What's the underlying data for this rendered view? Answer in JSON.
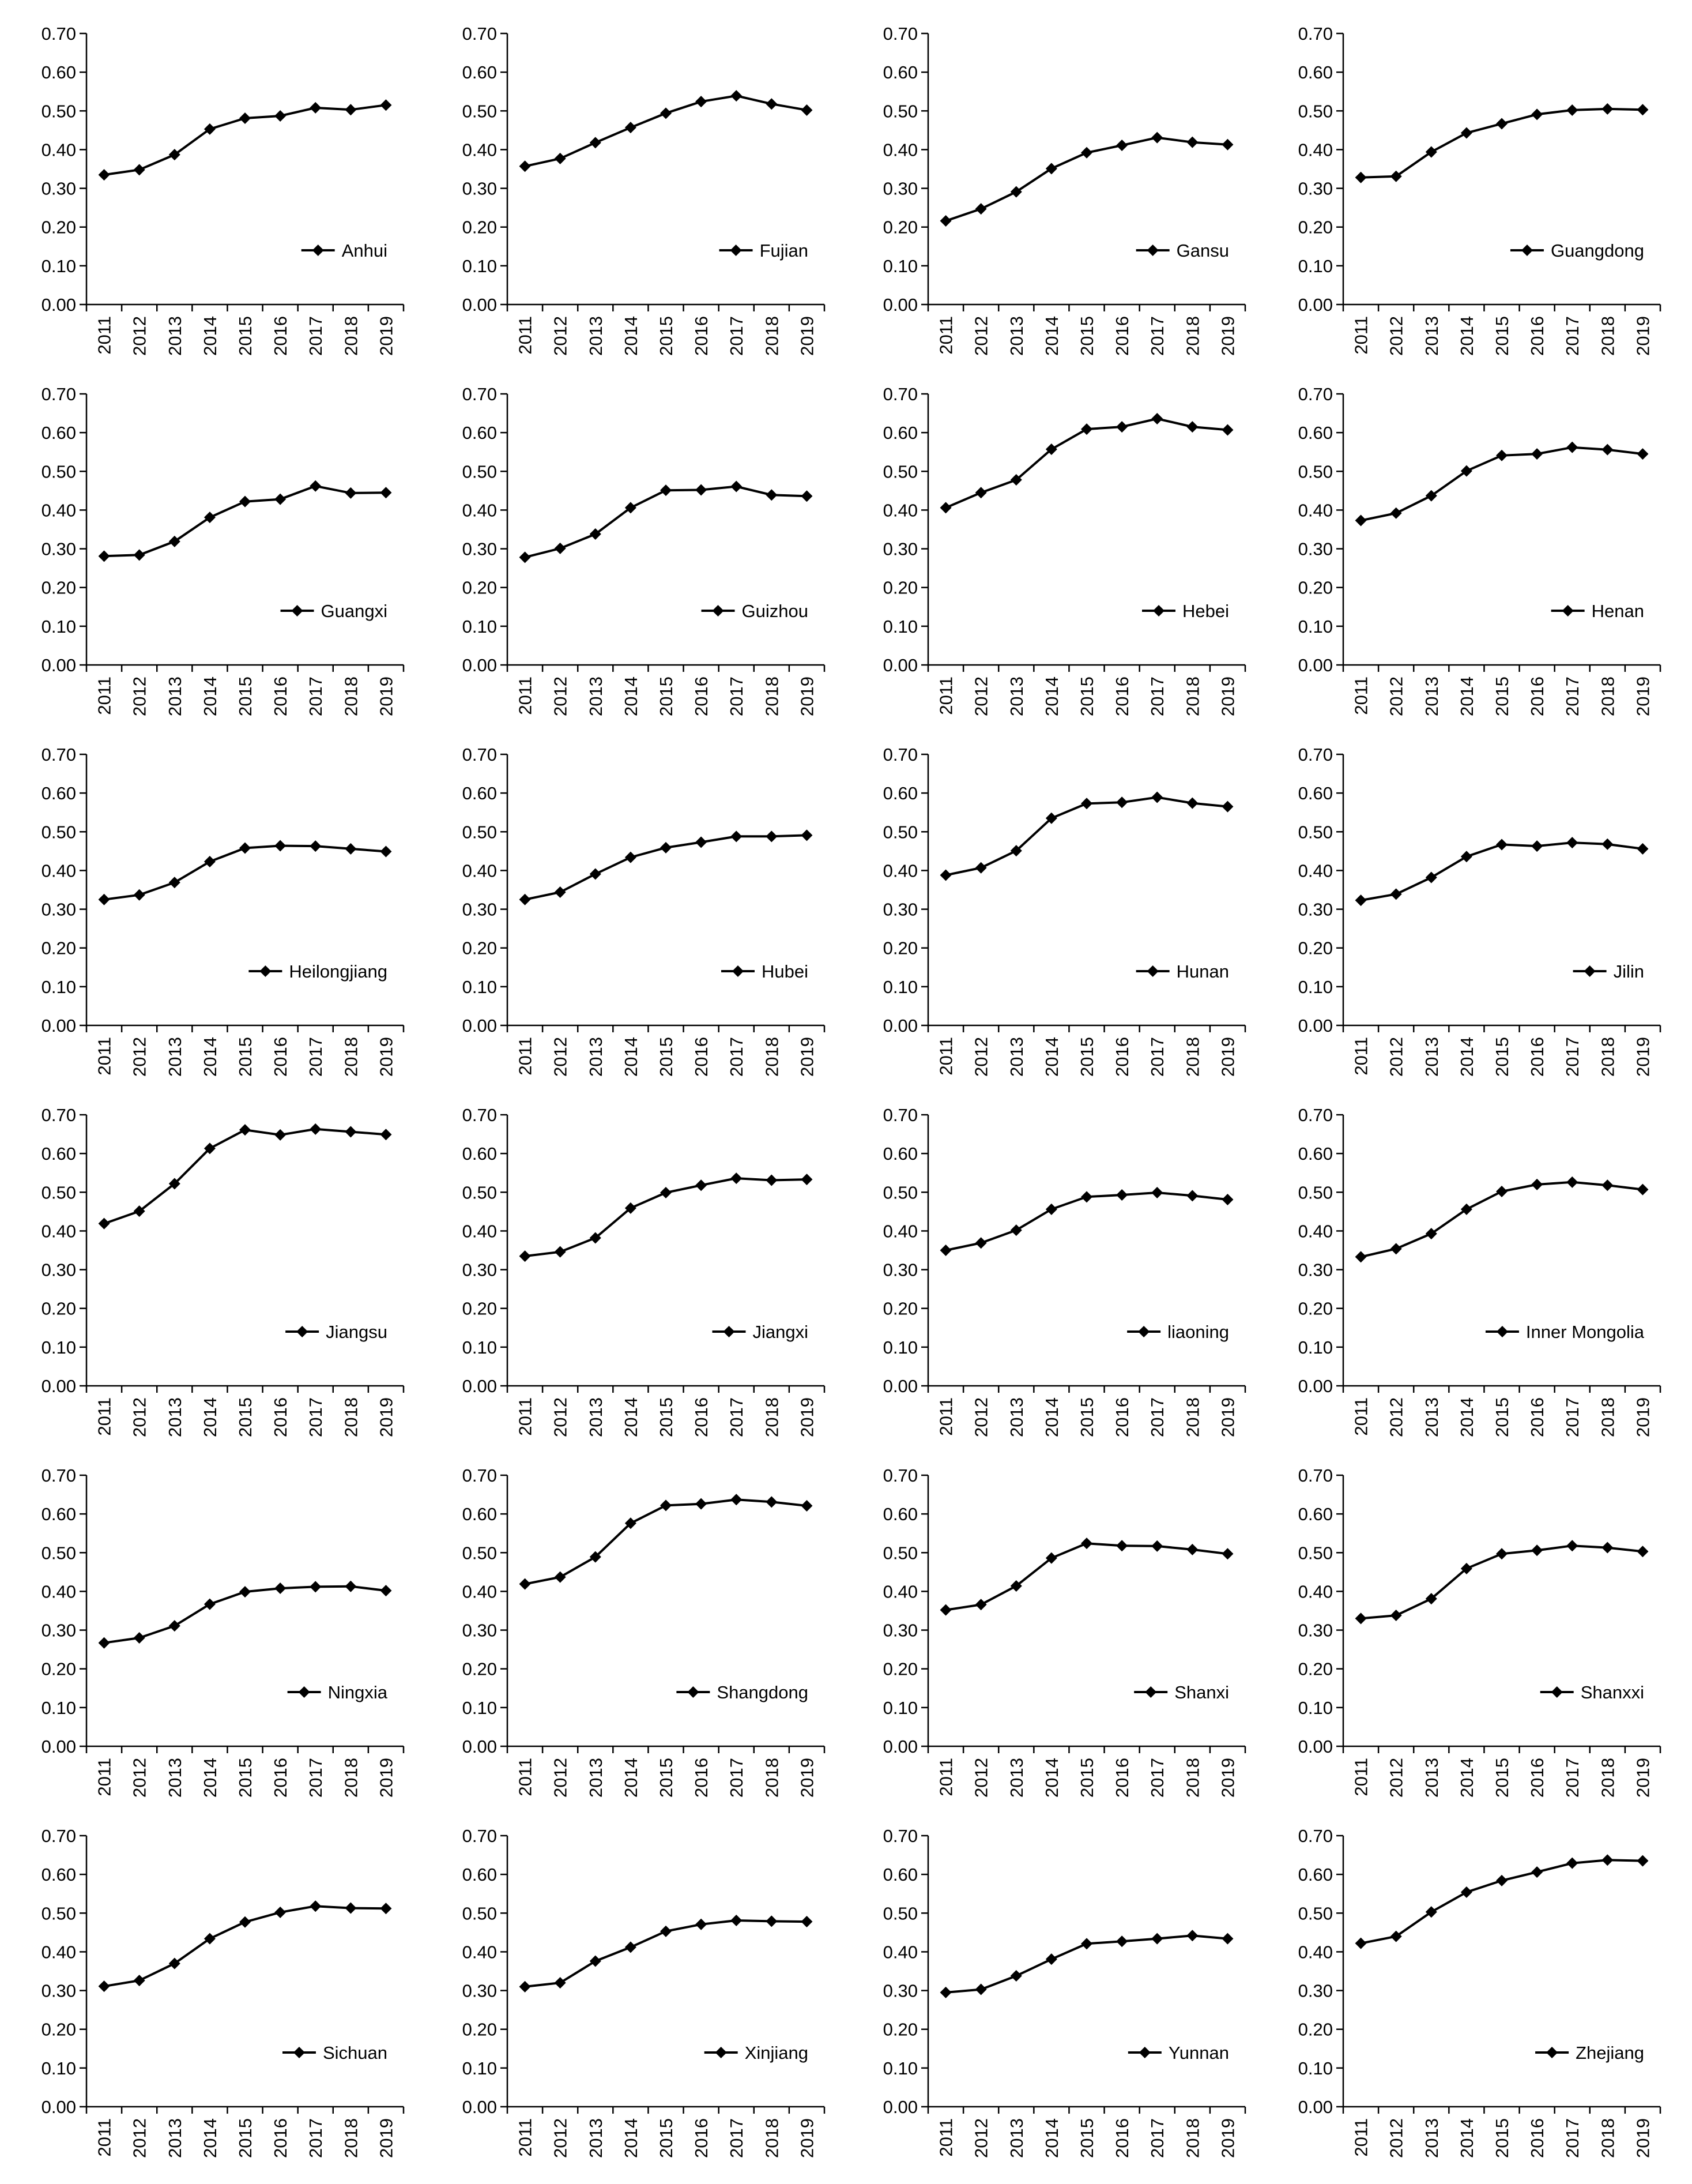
{
  "chart_data": [
    {
      "type": "line",
      "legend": "Anhui",
      "x": [
        "2011",
        "2012",
        "2013",
        "2014",
        "2015",
        "2016",
        "2017",
        "2018",
        "2019"
      ],
      "values": [
        0.335,
        0.348,
        0.387,
        0.453,
        0.481,
        0.487,
        0.508,
        0.503,
        0.515
      ],
      "ylim": [
        0,
        0.7
      ],
      "yticks": [
        "0.00",
        "0.10",
        "0.20",
        "0.30",
        "0.40",
        "0.50",
        "0.60",
        "0.70"
      ]
    },
    {
      "type": "line",
      "legend": "Fujian",
      "x": [
        "2011",
        "2012",
        "2013",
        "2014",
        "2015",
        "2016",
        "2017",
        "2018",
        "2019"
      ],
      "values": [
        0.357,
        0.377,
        0.418,
        0.457,
        0.494,
        0.524,
        0.539,
        0.518,
        0.502
      ],
      "ylim": [
        0,
        0.7
      ],
      "yticks": [
        "0.00",
        "0.10",
        "0.20",
        "0.30",
        "0.40",
        "0.50",
        "0.60",
        "0.70"
      ]
    },
    {
      "type": "line",
      "legend": "Gansu",
      "x": [
        "2011",
        "2012",
        "2013",
        "2014",
        "2015",
        "2016",
        "2017",
        "2018",
        "2019"
      ],
      "values": [
        0.216,
        0.247,
        0.291,
        0.351,
        0.392,
        0.411,
        0.431,
        0.419,
        0.413
      ],
      "ylim": [
        0,
        0.7
      ],
      "yticks": [
        "0.00",
        "0.10",
        "0.20",
        "0.30",
        "0.40",
        "0.50",
        "0.60",
        "0.70"
      ]
    },
    {
      "type": "line",
      "legend": "Guangdong",
      "x": [
        "2011",
        "2012",
        "2013",
        "2014",
        "2015",
        "2016",
        "2017",
        "2018",
        "2019"
      ],
      "values": [
        0.328,
        0.331,
        0.394,
        0.443,
        0.467,
        0.491,
        0.502,
        0.505,
        0.503
      ],
      "ylim": [
        0,
        0.7
      ],
      "yticks": [
        "0.00",
        "0.10",
        "0.20",
        "0.30",
        "0.40",
        "0.50",
        "0.60",
        "0.70"
      ]
    },
    {
      "type": "line",
      "legend": "Guangxi",
      "x": [
        "2011",
        "2012",
        "2013",
        "2014",
        "2015",
        "2016",
        "2017",
        "2018",
        "2019"
      ],
      "values": [
        0.281,
        0.284,
        0.319,
        0.381,
        0.422,
        0.428,
        0.462,
        0.444,
        0.445
      ],
      "ylim": [
        0,
        0.7
      ],
      "yticks": [
        "0.00",
        "0.10",
        "0.20",
        "0.30",
        "0.40",
        "0.50",
        "0.60",
        "0.70"
      ]
    },
    {
      "type": "line",
      "legend": "Guizhou",
      "x": [
        "2011",
        "2012",
        "2013",
        "2014",
        "2015",
        "2016",
        "2017",
        "2018",
        "2019"
      ],
      "values": [
        0.278,
        0.301,
        0.338,
        0.406,
        0.451,
        0.452,
        0.461,
        0.439,
        0.436
      ],
      "ylim": [
        0,
        0.7
      ],
      "yticks": [
        "0.00",
        "0.10",
        "0.20",
        "0.30",
        "0.40",
        "0.50",
        "0.60",
        "0.70"
      ]
    },
    {
      "type": "line",
      "legend": "Hebei",
      "x": [
        "2011",
        "2012",
        "2013",
        "2014",
        "2015",
        "2016",
        "2017",
        "2018",
        "2019"
      ],
      "values": [
        0.406,
        0.445,
        0.478,
        0.557,
        0.609,
        0.615,
        0.636,
        0.615,
        0.607
      ],
      "ylim": [
        0,
        0.7
      ],
      "yticks": [
        "0.00",
        "0.10",
        "0.20",
        "0.30",
        "0.40",
        "0.50",
        "0.60",
        "0.70"
      ]
    },
    {
      "type": "line",
      "legend": "Henan",
      "x": [
        "2011",
        "2012",
        "2013",
        "2014",
        "2015",
        "2016",
        "2017",
        "2018",
        "2019"
      ],
      "values": [
        0.373,
        0.392,
        0.437,
        0.501,
        0.541,
        0.545,
        0.562,
        0.556,
        0.545
      ],
      "ylim": [
        0,
        0.7
      ],
      "yticks": [
        "0.00",
        "0.10",
        "0.20",
        "0.30",
        "0.40",
        "0.50",
        "0.60",
        "0.70"
      ]
    },
    {
      "type": "line",
      "legend": "Heilongjiang",
      "x": [
        "2011",
        "2012",
        "2013",
        "2014",
        "2015",
        "2016",
        "2017",
        "2018",
        "2019"
      ],
      "values": [
        0.325,
        0.337,
        0.369,
        0.423,
        0.458,
        0.464,
        0.463,
        0.456,
        0.449
      ],
      "ylim": [
        0,
        0.7
      ],
      "yticks": [
        "0.00",
        "0.10",
        "0.20",
        "0.30",
        "0.40",
        "0.50",
        "0.60",
        "0.70"
      ]
    },
    {
      "type": "line",
      "legend": "Hubei",
      "x": [
        "2011",
        "2012",
        "2013",
        "2014",
        "2015",
        "2016",
        "2017",
        "2018",
        "2019"
      ],
      "values": [
        0.325,
        0.344,
        0.391,
        0.434,
        0.459,
        0.473,
        0.488,
        0.488,
        0.491
      ],
      "ylim": [
        0,
        0.7
      ],
      "yticks": [
        "0.00",
        "0.10",
        "0.20",
        "0.30",
        "0.40",
        "0.50",
        "0.60",
        "0.70"
      ]
    },
    {
      "type": "line",
      "legend": "Hunan",
      "x": [
        "2011",
        "2012",
        "2013",
        "2014",
        "2015",
        "2016",
        "2017",
        "2018",
        "2019"
      ],
      "values": [
        0.388,
        0.407,
        0.451,
        0.535,
        0.573,
        0.576,
        0.589,
        0.574,
        0.565
      ],
      "ylim": [
        0,
        0.7
      ],
      "yticks": [
        "0.00",
        "0.10",
        "0.20",
        "0.30",
        "0.40",
        "0.50",
        "0.60",
        "0.70"
      ]
    },
    {
      "type": "line",
      "legend": "Jilin",
      "x": [
        "2011",
        "2012",
        "2013",
        "2014",
        "2015",
        "2016",
        "2017",
        "2018",
        "2019"
      ],
      "values": [
        0.323,
        0.339,
        0.382,
        0.436,
        0.467,
        0.463,
        0.472,
        0.468,
        0.456
      ],
      "ylim": [
        0,
        0.7
      ],
      "yticks": [
        "0.00",
        "0.10",
        "0.20",
        "0.30",
        "0.40",
        "0.50",
        "0.60",
        "0.70"
      ]
    },
    {
      "type": "line",
      "legend": "Jiangsu",
      "x": [
        "2011",
        "2012",
        "2013",
        "2014",
        "2015",
        "2016",
        "2017",
        "2018",
        "2019"
      ],
      "values": [
        0.419,
        0.451,
        0.522,
        0.613,
        0.661,
        0.648,
        0.663,
        0.656,
        0.649
      ],
      "ylim": [
        0,
        0.7
      ],
      "yticks": [
        "0.00",
        "0.10",
        "0.20",
        "0.30",
        "0.40",
        "0.50",
        "0.60",
        "0.70"
      ]
    },
    {
      "type": "line",
      "legend": "Jiangxi",
      "x": [
        "2011",
        "2012",
        "2013",
        "2014",
        "2015",
        "2016",
        "2017",
        "2018",
        "2019"
      ],
      "values": [
        0.335,
        0.346,
        0.382,
        0.459,
        0.499,
        0.518,
        0.536,
        0.531,
        0.533
      ],
      "ylim": [
        0,
        0.7
      ],
      "yticks": [
        "0.00",
        "0.10",
        "0.20",
        "0.30",
        "0.40",
        "0.50",
        "0.60",
        "0.70"
      ]
    },
    {
      "type": "line",
      "legend": "liaoning",
      "x": [
        "2011",
        "2012",
        "2013",
        "2014",
        "2015",
        "2016",
        "2017",
        "2018",
        "2019"
      ],
      "values": [
        0.35,
        0.369,
        0.402,
        0.456,
        0.488,
        0.493,
        0.499,
        0.491,
        0.481
      ],
      "ylim": [
        0,
        0.7
      ],
      "yticks": [
        "0.00",
        "0.10",
        "0.20",
        "0.30",
        "0.40",
        "0.50",
        "0.60",
        "0.70"
      ]
    },
    {
      "type": "line",
      "legend": "Inner Mongolia",
      "x": [
        "2011",
        "2012",
        "2013",
        "2014",
        "2015",
        "2016",
        "2017",
        "2018",
        "2019"
      ],
      "values": [
        0.333,
        0.354,
        0.393,
        0.456,
        0.502,
        0.52,
        0.526,
        0.518,
        0.507
      ],
      "ylim": [
        0,
        0.7
      ],
      "yticks": [
        "0.00",
        "0.10",
        "0.20",
        "0.30",
        "0.40",
        "0.50",
        "0.60",
        "0.70"
      ]
    },
    {
      "type": "line",
      "legend": "Ningxia",
      "x": [
        "2011",
        "2012",
        "2013",
        "2014",
        "2015",
        "2016",
        "2017",
        "2018",
        "2019"
      ],
      "values": [
        0.267,
        0.28,
        0.311,
        0.367,
        0.399,
        0.408,
        0.412,
        0.413,
        0.402
      ],
      "ylim": [
        0,
        0.7
      ],
      "yticks": [
        "0.00",
        "0.10",
        "0.20",
        "0.30",
        "0.40",
        "0.50",
        "0.60",
        "0.70"
      ]
    },
    {
      "type": "line",
      "legend": "Shangdong",
      "x": [
        "2011",
        "2012",
        "2013",
        "2014",
        "2015",
        "2016",
        "2017",
        "2018",
        "2019"
      ],
      "values": [
        0.419,
        0.437,
        0.489,
        0.576,
        0.622,
        0.626,
        0.637,
        0.631,
        0.621
      ],
      "ylim": [
        0,
        0.7
      ],
      "yticks": [
        "0.00",
        "0.10",
        "0.20",
        "0.30",
        "0.40",
        "0.50",
        "0.60",
        "0.70"
      ]
    },
    {
      "type": "line",
      "legend": "Shanxi",
      "x": [
        "2011",
        "2012",
        "2013",
        "2014",
        "2015",
        "2016",
        "2017",
        "2018",
        "2019"
      ],
      "values": [
        0.352,
        0.366,
        0.414,
        0.486,
        0.524,
        0.518,
        0.517,
        0.508,
        0.497
      ],
      "ylim": [
        0,
        0.7
      ],
      "yticks": [
        "0.00",
        "0.10",
        "0.20",
        "0.30",
        "0.40",
        "0.50",
        "0.60",
        "0.70"
      ]
    },
    {
      "type": "line",
      "legend": "Shanxxi",
      "x": [
        "2011",
        "2012",
        "2013",
        "2014",
        "2015",
        "2016",
        "2017",
        "2018",
        "2019"
      ],
      "values": [
        0.33,
        0.338,
        0.381,
        0.459,
        0.497,
        0.506,
        0.518,
        0.513,
        0.503
      ],
      "ylim": [
        0,
        0.7
      ],
      "yticks": [
        "0.00",
        "0.10",
        "0.20",
        "0.30",
        "0.40",
        "0.50",
        "0.60",
        "0.70"
      ]
    },
    {
      "type": "line",
      "legend": "Sichuan",
      "x": [
        "2011",
        "2012",
        "2013",
        "2014",
        "2015",
        "2016",
        "2017",
        "2018",
        "2019"
      ],
      "values": [
        0.311,
        0.326,
        0.37,
        0.434,
        0.477,
        0.502,
        0.518,
        0.513,
        0.512
      ],
      "ylim": [
        0,
        0.7
      ],
      "yticks": [
        "0.00",
        "0.10",
        "0.20",
        "0.30",
        "0.40",
        "0.50",
        "0.60",
        "0.70"
      ]
    },
    {
      "type": "line",
      "legend": "Xinjiang",
      "x": [
        "2011",
        "2012",
        "2013",
        "2014",
        "2015",
        "2016",
        "2017",
        "2018",
        "2019"
      ],
      "values": [
        0.31,
        0.32,
        0.376,
        0.412,
        0.453,
        0.471,
        0.481,
        0.479,
        0.478
      ],
      "ylim": [
        0,
        0.7
      ],
      "yticks": [
        "0.00",
        "0.10",
        "0.20",
        "0.30",
        "0.40",
        "0.50",
        "0.60",
        "0.70"
      ]
    },
    {
      "type": "line",
      "legend": "Yunnan",
      "x": [
        "2011",
        "2012",
        "2013",
        "2014",
        "2015",
        "2016",
        "2017",
        "2018",
        "2019"
      ],
      "values": [
        0.295,
        0.303,
        0.338,
        0.381,
        0.421,
        0.427,
        0.434,
        0.442,
        0.434
      ],
      "ylim": [
        0,
        0.7
      ],
      "yticks": [
        "0.00",
        "0.10",
        "0.20",
        "0.30",
        "0.40",
        "0.50",
        "0.60",
        "0.70"
      ]
    },
    {
      "type": "line",
      "legend": "Zhejiang",
      "x": [
        "2011",
        "2012",
        "2013",
        "2014",
        "2015",
        "2016",
        "2017",
        "2018",
        "2019"
      ],
      "values": [
        0.422,
        0.44,
        0.503,
        0.554,
        0.584,
        0.606,
        0.629,
        0.637,
        0.635
      ],
      "ylim": [
        0,
        0.7
      ],
      "yticks": [
        "0.00",
        "0.10",
        "0.20",
        "0.30",
        "0.40",
        "0.50",
        "0.60",
        "0.70"
      ]
    }
  ]
}
